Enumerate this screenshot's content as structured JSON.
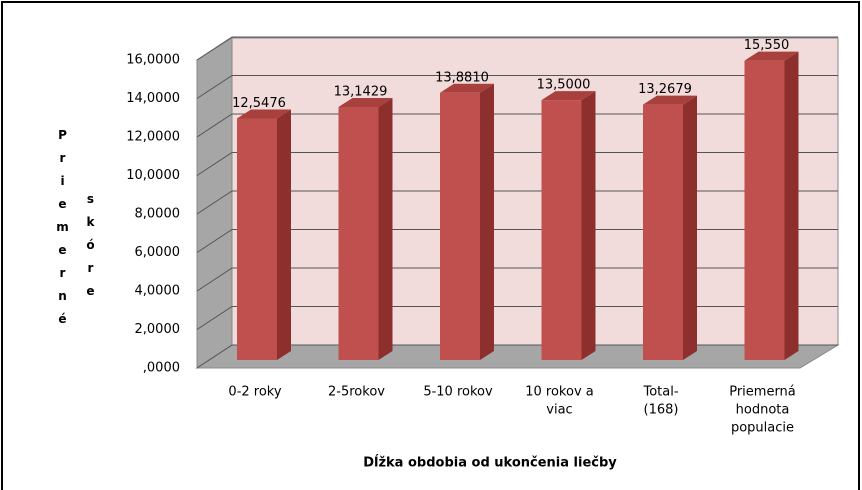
{
  "chart_data": {
    "type": "bar3d",
    "y_label": [
      "Priemerné",
      "skóre"
    ],
    "x_label": "Dĺžka obdobia od ukončenia liečby",
    "categories": [
      [
        "0-2 roky"
      ],
      [
        "2-5rokov"
      ],
      [
        "5-10 rokov"
      ],
      [
        "10 rokov a",
        "viac"
      ],
      [
        "Total-",
        "(168)"
      ],
      [
        "Priemerná",
        "hodnota",
        "populacie"
      ]
    ],
    "values": [
      12.5476,
      13.1429,
      13.881,
      13.5,
      13.2679,
      15.55
    ],
    "value_labels": [
      "12,5476",
      "13,1429",
      "13,8810",
      "13,5000",
      "13,2679",
      "15,550"
    ],
    "color": "#c0504d",
    "ylim": [
      0,
      16
    ],
    "yticks": [
      {
        "value": 0,
        "label": ",0000"
      },
      {
        "value": 2,
        "label": "2,0000"
      },
      {
        "value": 4,
        "label": "4,0000"
      },
      {
        "value": 6,
        "label": "6,0000"
      },
      {
        "value": 8,
        "label": "8,0000"
      },
      {
        "value": 10,
        "label": "10,0000"
      },
      {
        "value": 12,
        "label": "12,0000"
      },
      {
        "value": 14,
        "label": "14,0000"
      },
      {
        "value": 16,
        "label": "16,0000"
      }
    ],
    "grid": true
  }
}
